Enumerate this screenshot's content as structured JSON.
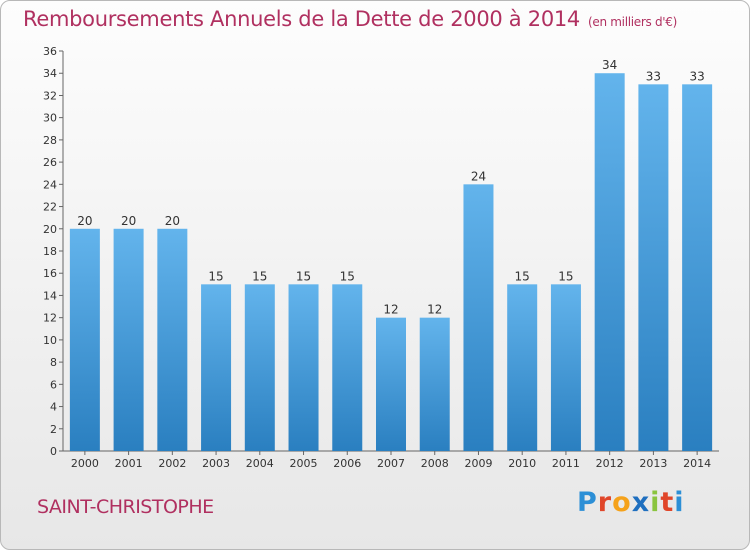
{
  "header": {
    "title": "Remboursements Annuels de la Dette de 2000 à 2014",
    "subtitle": "(en milliers d'€)"
  },
  "footer": {
    "place": "SAINT-CHRISTOPHE",
    "logo": {
      "letters": [
        "P",
        "r",
        "o",
        "x",
        "i",
        "t",
        "i"
      ],
      "colors": [
        "#2c8fd6",
        "#e0462a",
        "#f5a21b",
        "#1f6fbf",
        "#8ac43f",
        "#e0462a",
        "#2c8fd6"
      ]
    }
  },
  "chart_data": {
    "type": "bar",
    "title": "Remboursements Annuels de la Dette de 2000 à 2014",
    "subtitle": "(en milliers d'€)",
    "xlabel": "",
    "ylabel": "",
    "categories": [
      "2000",
      "2001",
      "2002",
      "2003",
      "2004",
      "2005",
      "2006",
      "2007",
      "2008",
      "2009",
      "2010",
      "2011",
      "2012",
      "2013",
      "2014"
    ],
    "values": [
      20,
      20,
      20,
      15,
      15,
      15,
      15,
      12,
      12,
      24,
      15,
      15,
      34,
      33,
      33
    ],
    "ylim": [
      0,
      36
    ],
    "yticks": [
      0,
      2,
      4,
      6,
      8,
      10,
      12,
      14,
      16,
      18,
      20,
      22,
      24,
      26,
      28,
      30,
      32,
      34,
      36
    ],
    "grid": false,
    "colors": {
      "bar_top": "#63b4ec",
      "bar_bottom": "#2a7fc0",
      "axis": "#666666",
      "text": "#333333"
    }
  }
}
